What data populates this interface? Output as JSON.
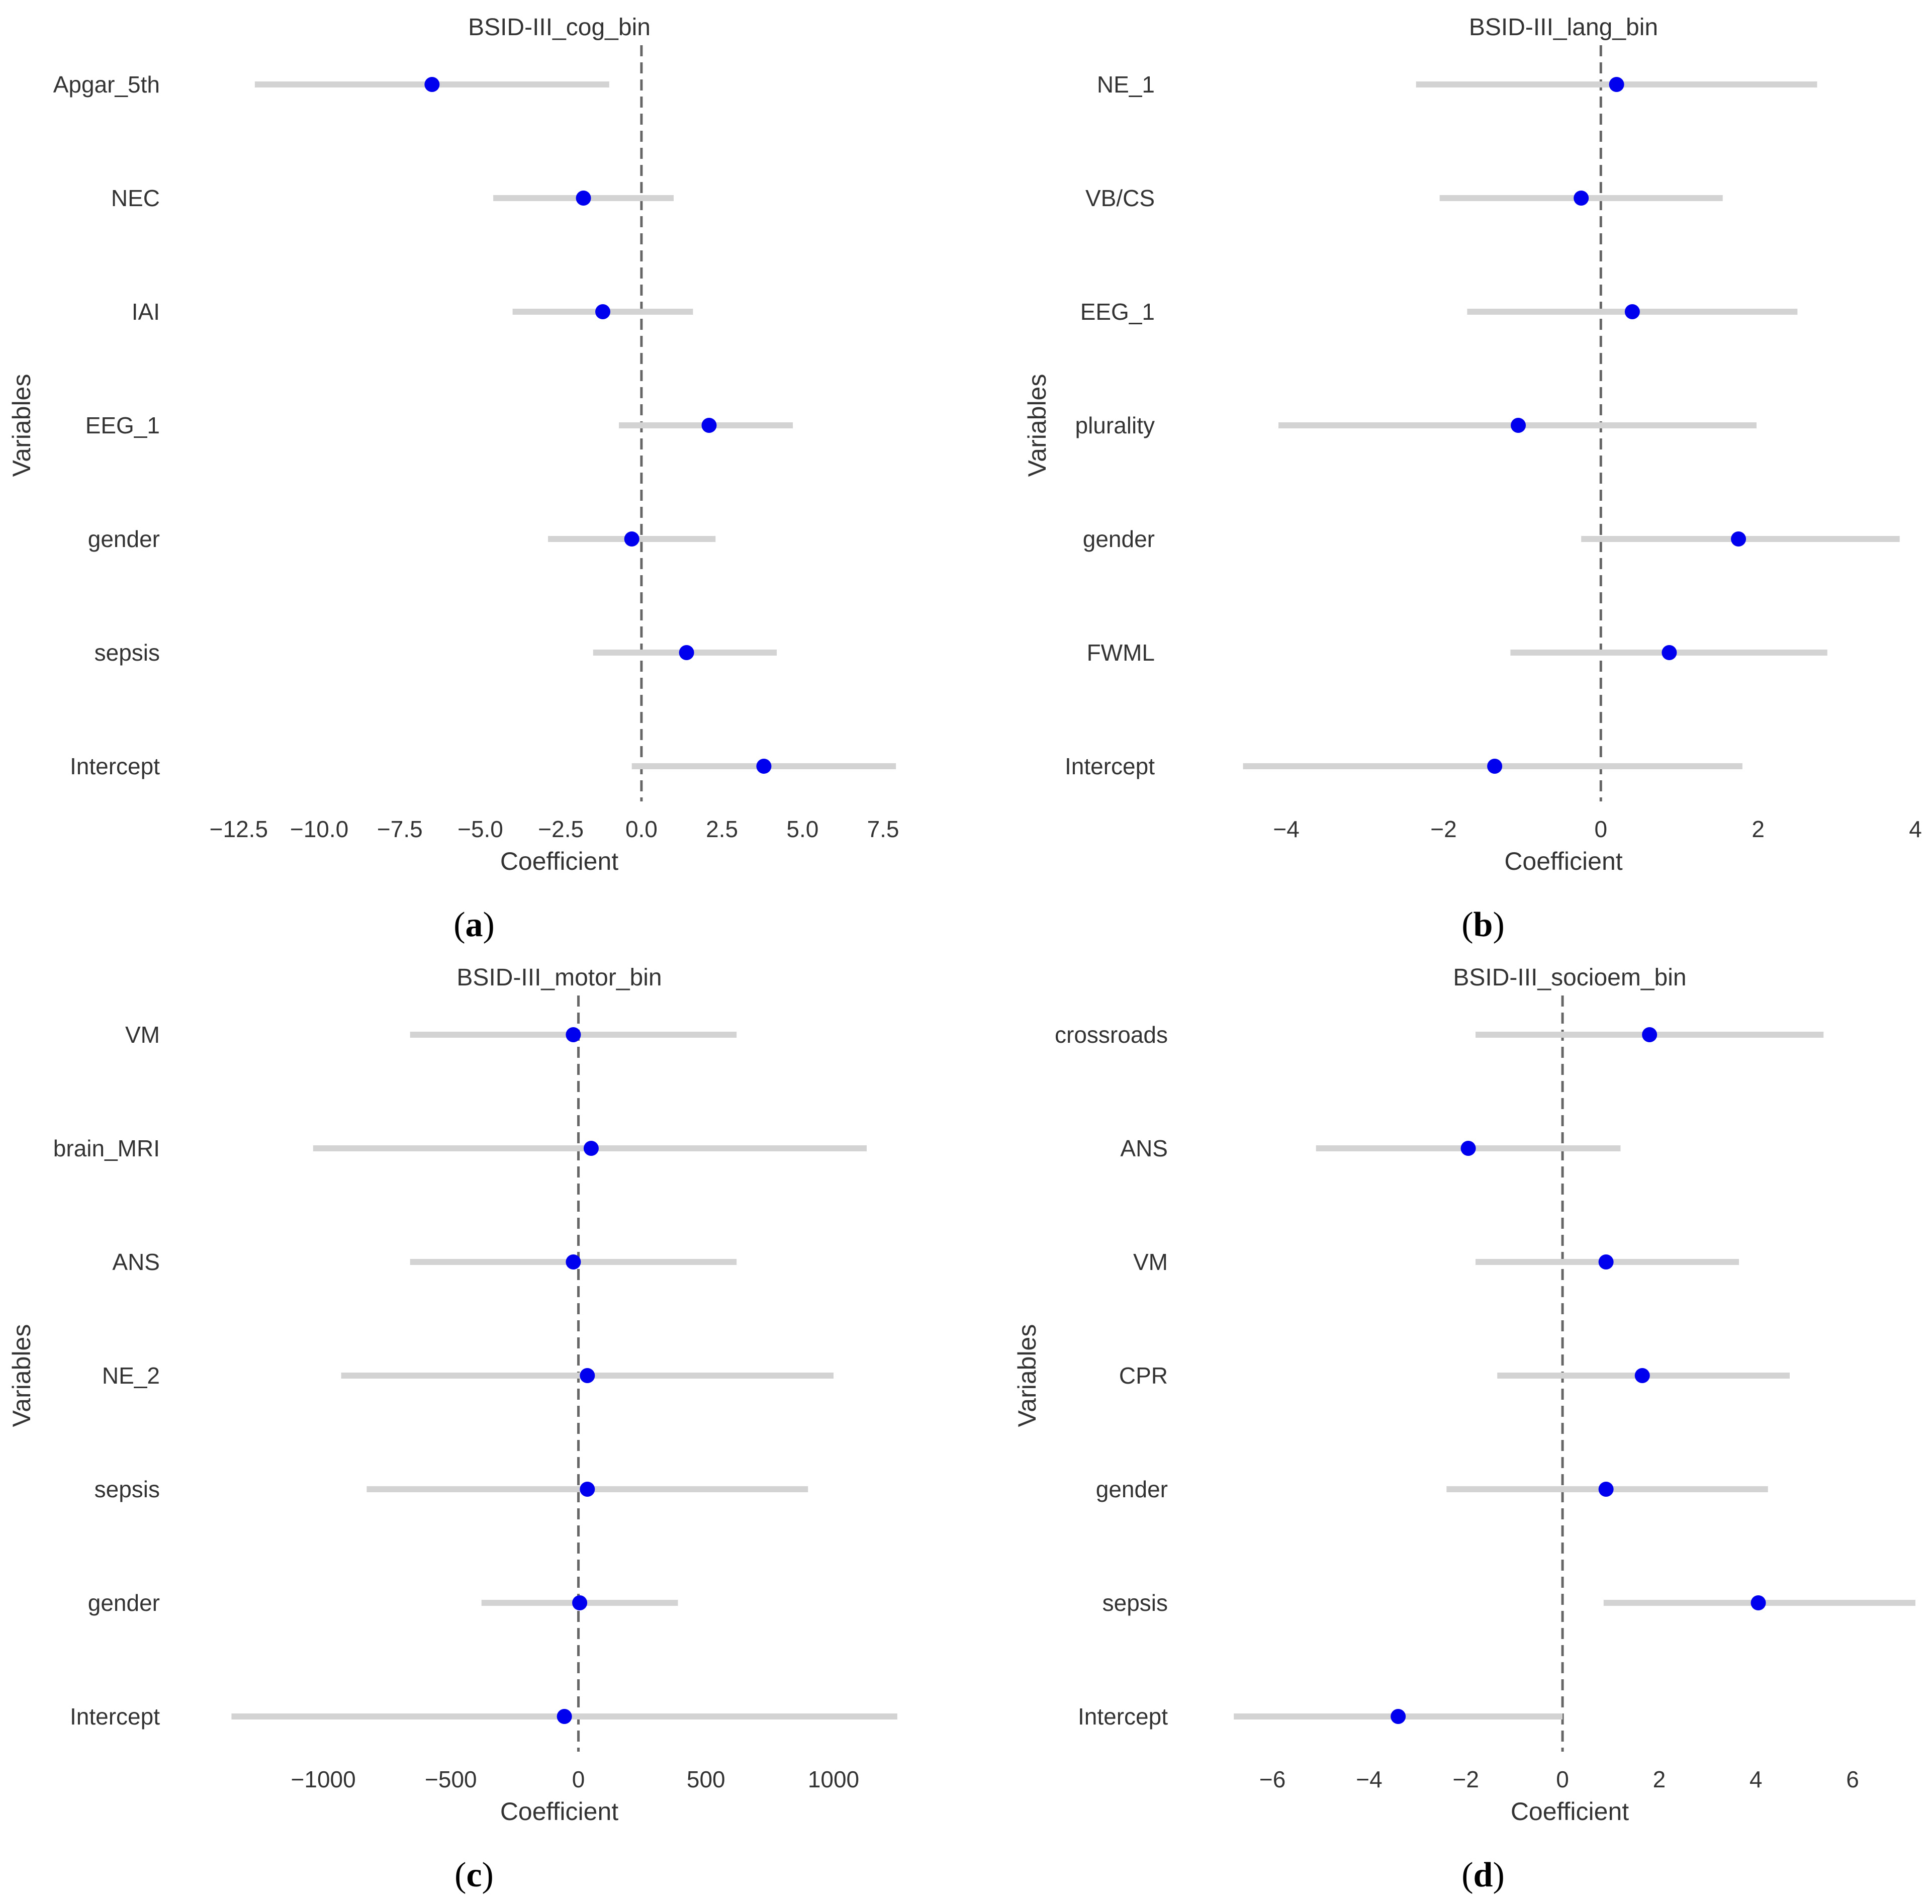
{
  "colors": {
    "point": "#0000ee",
    "ci_line": "#d3d3d3",
    "zero_line": "#666666",
    "text": "#333333"
  },
  "chart_data": [
    {
      "type": "scatter",
      "panel_label": "a",
      "title": "BSID-III_cog_bin",
      "xlabel": "Coefficient",
      "ylabel": "Variables",
      "xlim": [
        -13.2,
        8.1
      ],
      "xticks": [
        -12.5,
        -10.0,
        -7.5,
        -5.0,
        -2.5,
        0.0,
        2.5,
        5.0,
        7.5
      ],
      "xtick_labels": [
        "−12.5",
        "−10.0",
        "−7.5",
        "−5.0",
        "−2.5",
        "0.0",
        "2.5",
        "5.0",
        "7.5"
      ],
      "grid": false,
      "categories": [
        "Apgar_5th",
        "NEC",
        "IAI",
        "EEG_1",
        "gender",
        "sepsis",
        "Intercept"
      ],
      "coef": [
        -6.5,
        -1.8,
        -1.2,
        2.1,
        -0.3,
        1.4,
        3.8
      ],
      "ci_low": [
        -12.0,
        -4.6,
        -4.0,
        -0.7,
        -2.9,
        -1.5,
        -0.3
      ],
      "ci_high": [
        -1.0,
        1.0,
        1.6,
        4.7,
        2.3,
        4.2,
        7.9
      ]
    },
    {
      "type": "scatter",
      "panel_label": "b",
      "title": "BSID-III_lang_bin",
      "xlabel": "Coefficient",
      "ylabel": "Variables",
      "xlim": [
        -4.95,
        4.0
      ],
      "xticks": [
        -4,
        -2,
        0,
        2,
        4
      ],
      "xtick_labels": [
        "−4",
        "−2",
        "0",
        "2",
        "4"
      ],
      "grid": false,
      "categories": [
        "NE_1",
        "VB/CS",
        "EEG_1",
        "plurality",
        "gender",
        "FWML",
        "Intercept"
      ],
      "coef": [
        0.2,
        -0.25,
        0.4,
        -1.05,
        1.75,
        0.87,
        -1.35
      ],
      "ci_low": [
        -2.35,
        -2.05,
        -1.7,
        -4.1,
        -0.25,
        -1.15,
        -4.55
      ],
      "ci_high": [
        2.75,
        1.55,
        2.5,
        1.98,
        3.8,
        2.88,
        1.8
      ]
    },
    {
      "type": "scatter",
      "panel_label": "c",
      "title": "BSID-III_motor_bin",
      "xlabel": "Coefficient",
      "ylabel": "Variables",
      "xlim": [
        -1420,
        1270
      ],
      "xticks": [
        -1000,
        -500,
        0,
        500,
        1000
      ],
      "xtick_labels": [
        "−1000",
        "−500",
        "0",
        "500",
        "1000"
      ],
      "grid": false,
      "categories": [
        "VM",
        "brain_MRI",
        "ANS",
        "NE_2",
        "sepsis",
        "gender",
        "Intercept"
      ],
      "coef": [
        -20,
        50,
        -20,
        35,
        35,
        5,
        -55
      ],
      "ci_low": [
        -660,
        -1040,
        -660,
        -930,
        -830,
        -380,
        -1360
      ],
      "ci_high": [
        620,
        1130,
        620,
        1000,
        900,
        390,
        1250
      ]
    },
    {
      "type": "scatter",
      "panel_label": "d",
      "title": "BSID-III_socioem_bin",
      "xlabel": "Coefficient",
      "ylabel": "Variables",
      "xlim": [
        -7.0,
        7.3
      ],
      "xticks": [
        -6,
        -4,
        -2,
        0,
        2,
        4,
        6
      ],
      "xtick_labels": [
        "−6",
        "−4",
        "−2",
        "0",
        "2",
        "4",
        "6"
      ],
      "grid": false,
      "categories": [
        "crossroads",
        "ANS",
        "VM",
        "CPR",
        "gender",
        "sepsis",
        "Intercept"
      ],
      "coef": [
        1.8,
        -1.95,
        0.9,
        1.65,
        0.9,
        4.05,
        -3.4
      ],
      "ci_low": [
        -1.8,
        -5.1,
        -1.8,
        -1.35,
        -2.4,
        0.85,
        -6.8
      ],
      "ci_high": [
        5.4,
        1.2,
        3.65,
        4.7,
        4.25,
        7.3,
        0.0
      ]
    }
  ]
}
